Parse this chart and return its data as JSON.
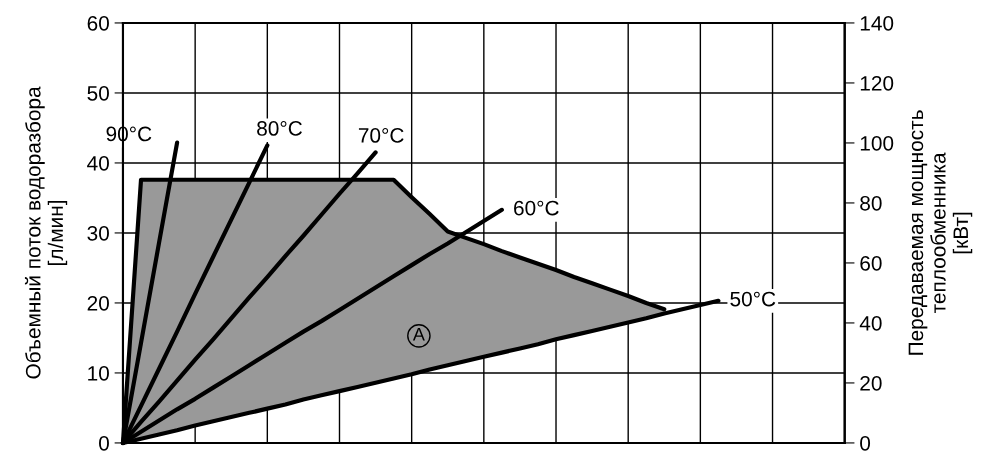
{
  "chart_data": {
    "type": "line",
    "ylabel": "Объемный поток водоразбора\n[л/мин]",
    "y2label": "Передаваемая мощность\nтеплообменника\n[кВт]",
    "categories": [
      null,
      null,
      null,
      null,
      null,
      null,
      null,
      null,
      null,
      null,
      null,
      null,
      null,
      null,
      null,
      null,
      null,
      null,
      null,
      null,
      null,
      null,
      null,
      null,
      null,
      null,
      null,
      null,
      null,
      null,
      null,
      null,
      null,
      null,
      null,
      null,
      null,
      null,
      null,
      null,
      null
    ],
    "ylim": [
      0,
      60
    ],
    "yticks": [
      0,
      10,
      20,
      30,
      40,
      50,
      60
    ],
    "y2lim": [
      0,
      140
    ],
    "y2ticks": [
      0,
      20,
      40,
      60,
      80,
      100,
      120,
      140
    ],
    "grid": true,
    "legend": false,
    "marker": "none",
    "line_style": "solid",
    "series": [
      {
        "type": "line",
        "color": "#000000",
        "values": [
          0,
          37.6,
          37.6,
          37.6,
          37.6,
          37.6,
          37.6,
          37.6,
          37.6,
          37.6,
          37.6,
          37.6,
          37.6,
          37.6,
          37.6,
          37.6,
          35.1,
          32.7,
          30.2,
          29.3,
          28.4,
          27.4,
          26.5,
          25.6,
          24.7,
          23.7,
          22.8,
          21.9,
          21.0,
          20.0,
          19.1,
          null,
          null,
          null,
          null,
          null,
          null,
          null,
          null,
          null,
          null
        ],
        "upper": [
          0,
          37.6,
          37.6,
          37.6,
          37.6,
          37.6,
          37.6,
          37.6,
          37.6,
          37.6,
          37.6,
          37.6,
          37.6,
          37.6,
          37.6,
          37.6,
          35.1,
          32.7,
          30.2,
          29.3,
          28.4,
          27.4,
          26.5,
          25.6,
          24.7,
          23.7,
          22.8,
          21.9,
          21.0,
          20.0,
          19.1,
          null,
          null,
          null,
          null,
          null,
          null,
          null,
          null,
          null,
          null
        ],
        "lower": [
          0,
          0.6,
          1.2,
          1.8,
          2.5,
          3.1,
          3.7,
          4.3,
          4.9,
          5.5,
          6.2,
          6.8,
          7.4,
          8.0,
          8.6,
          9.2,
          9.8,
          10.5,
          11.1,
          11.7,
          12.3,
          12.9,
          13.5,
          14.1,
          14.8,
          15.4,
          16.0,
          16.6,
          17.2,
          17.8,
          18.5,
          null,
          null,
          null,
          null,
          null,
          null,
          null,
          null,
          null,
          null
        ]
      },
      {
        "name": "90°C",
        "color": "#000000",
        "values": [
          0,
          14.3,
          28.6,
          42.9,
          null,
          null,
          null,
          null,
          null,
          null,
          null,
          null,
          null,
          null,
          null,
          null,
          null,
          null,
          null,
          null,
          null,
          null,
          null,
          null,
          null,
          null,
          null,
          null,
          null,
          null,
          null,
          null,
          null,
          null,
          null,
          null,
          null,
          null,
          null,
          null,
          null
        ]
      },
      {
        "name": "80°C",
        "color": "#000000",
        "values": [
          0,
          5.3,
          10.6,
          15.9,
          21.3,
          26.6,
          31.9,
          37.2,
          42.5,
          null,
          null,
          null,
          null,
          null,
          null,
          null,
          null,
          null,
          null,
          null,
          null,
          null,
          null,
          null,
          null,
          null,
          null,
          null,
          null,
          null,
          null,
          null,
          null,
          null,
          null,
          null,
          null,
          null,
          null,
          null,
          null
        ]
      },
      {
        "name": "70°C",
        "color": "#000000",
        "values": [
          0,
          3.0,
          5.9,
          8.9,
          11.9,
          14.8,
          17.8,
          20.8,
          23.7,
          26.7,
          29.6,
          32.6,
          35.6,
          38.5,
          41.5,
          null,
          null,
          null,
          null,
          null,
          null,
          null,
          null,
          null,
          null,
          null,
          null,
          null,
          null,
          null,
          null,
          null,
          null,
          null,
          null,
          null,
          null,
          null,
          null,
          null,
          null
        ]
      },
      {
        "name": "60°C",
        "color": "#000000",
        "values": [
          0,
          1.6,
          3.2,
          4.8,
          6.3,
          7.9,
          9.5,
          11.1,
          12.7,
          14.3,
          15.9,
          17.4,
          19.0,
          20.6,
          22.2,
          23.8,
          25.4,
          27.0,
          28.5,
          30.1,
          31.7,
          33.3,
          null,
          null,
          null,
          null,
          null,
          null,
          null,
          null,
          null,
          null,
          null,
          null,
          null,
          null,
          null,
          null,
          null,
          null,
          null
        ]
      },
      {
        "name": "50°C",
        "color": "#000000",
        "values": [
          0,
          0.6,
          1.2,
          1.8,
          2.5,
          3.1,
          3.7,
          4.3,
          4.9,
          5.5,
          6.2,
          6.8,
          7.4,
          8.0,
          8.6,
          9.2,
          9.8,
          10.5,
          11.1,
          11.7,
          12.3,
          12.9,
          13.5,
          14.1,
          14.8,
          15.4,
          16.0,
          16.6,
          17.2,
          17.8,
          18.5,
          19.1,
          19.7,
          20.3,
          null,
          null,
          null,
          null,
          null,
          null,
          null
        ]
      }
    ],
    "annotations": [
      "A"
    ]
  }
}
